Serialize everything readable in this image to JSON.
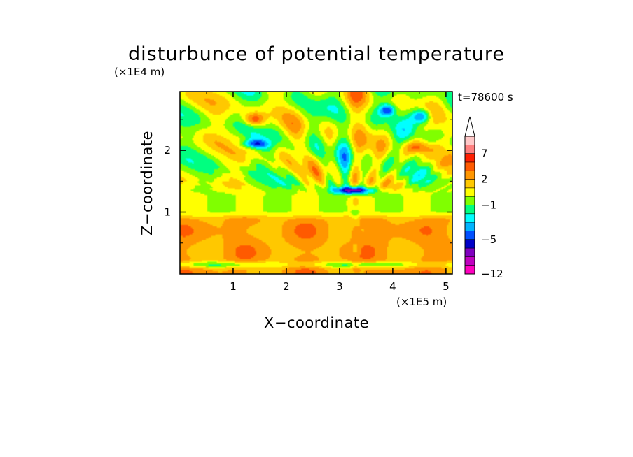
{
  "chart_data": {
    "type": "heatmap",
    "title": "disturbunce of potential temperature",
    "xlabel": "X−coordinate",
    "ylabel": "Z−coordinate",
    "x_unit": "(×1E5 m)",
    "y_unit": "(×1E4 m)",
    "time_label": "t=78600 s",
    "xlim": [
      0,
      5.12
    ],
    "ylim": [
      0,
      2.95
    ],
    "x_ticks": [
      "1",
      "2",
      "3",
      "4",
      "5"
    ],
    "y_ticks": [
      "1",
      "2"
    ],
    "x_tick_values": [
      1,
      2,
      3,
      4,
      5
    ],
    "y_tick_values": [
      1,
      2
    ],
    "colorbar": {
      "levels": [
        -12,
        -10,
        -8,
        -6,
        -5,
        -4,
        -3,
        -2,
        -1,
        0,
        1,
        2,
        3,
        5,
        7,
        9,
        11
      ],
      "labels": [
        "−12",
        "−5",
        "−1",
        "2",
        "7"
      ],
      "label_values": [
        -12,
        -5,
        -1,
        2,
        7
      ],
      "colors": [
        "#ff00c0",
        "#c000c0",
        "#8000c0",
        "#0000c8",
        "#0050ff",
        "#00b4ff",
        "#00ffff",
        "#00ff80",
        "#80ff00",
        "#ffff00",
        "#ffc800",
        "#ff9600",
        "#ff5a00",
        "#ff1e00",
        "#ff8080",
        "#ffc8c8"
      ],
      "extend": "max",
      "extend_color": "#ffffff"
    },
    "z_summary": "layered field: warm anomaly (~+2 to +3) below z=0.95; near-zero band z=0.95-1.3; cold anomaly (~-5) near z=1.35 at x=2.9-3.7; wave pattern with +/-3 anomalies above",
    "grid": false
  }
}
